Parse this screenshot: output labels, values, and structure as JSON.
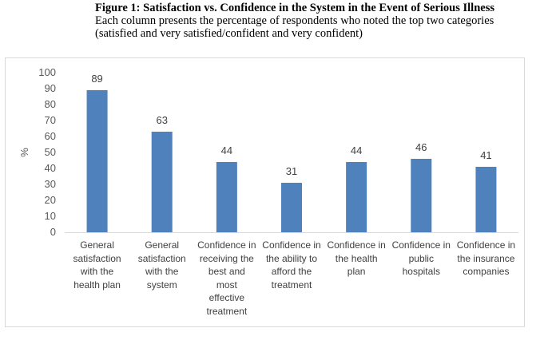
{
  "caption": {
    "title": "Figure 1: Satisfaction vs. Confidence in the System in the Event of Serious Illness",
    "line1": "Each column presents the percentage of respondents who noted the top two categories",
    "line2": "(satisfied and very satisfied/confident and very confident)"
  },
  "chart_data": {
    "type": "bar",
    "title": "Figure 1: Satisfaction vs. Confidence in the System in the Event of Serious Illness",
    "ylabel": "%",
    "xlabel": "",
    "ylim": [
      0,
      100
    ],
    "yticks": [
      "0",
      "10",
      "20",
      "30",
      "40",
      "50",
      "60",
      "70",
      "80",
      "90",
      "100"
    ],
    "grid": false,
    "legend": "none",
    "bar_color": "#4f81bd",
    "categories": [
      "General satisfaction with the health plan",
      "General satisfaction with the system",
      "Confidence in receiving the best and most effective treatment",
      "Confidence in the ability to afford the treatment",
      "Confidence in the health plan",
      "Confidence in public hospitals",
      "Confidence in the insurance companies"
    ],
    "category_lines": [
      [
        "General",
        "satisfaction",
        "with the",
        "health plan"
      ],
      [
        "General",
        "satisfaction",
        "with the",
        "system"
      ],
      [
        "Confidence in",
        "receiving the",
        "best and",
        "most",
        "effective",
        "treatment"
      ],
      [
        "Confidence in",
        "the ability to",
        "afford the",
        "treatment"
      ],
      [
        "Confidence in",
        "the health",
        "plan"
      ],
      [
        "Confidence in",
        "public",
        "hospitals"
      ],
      [
        "Confidence in",
        "the insurance",
        "companies"
      ]
    ],
    "values": [
      89,
      63,
      44,
      31,
      44,
      46,
      41
    ],
    "value_labels": [
      "89",
      "63",
      "44",
      "31",
      "44",
      "46",
      "41"
    ]
  }
}
